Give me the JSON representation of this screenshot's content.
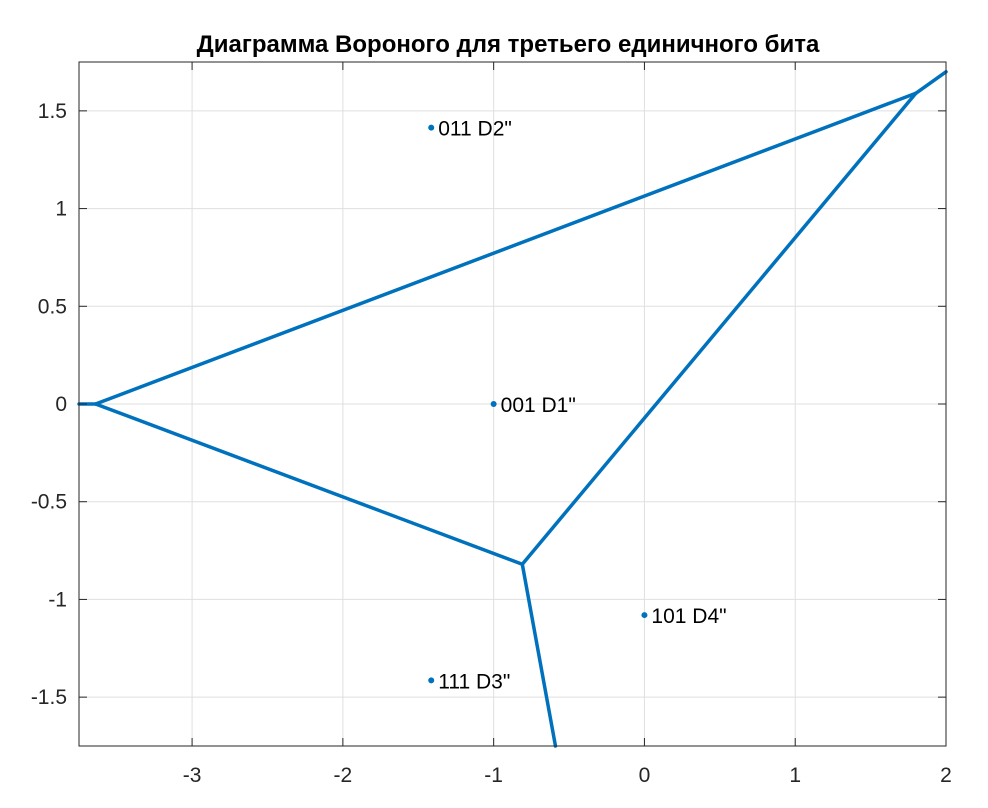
{
  "chart_data": {
    "type": "voronoi",
    "title": "Диаграмма Вороного для третьего единичного бита",
    "xlabel": "",
    "ylabel": "",
    "xlim": [
      -3.75,
      2
    ],
    "ylim": [
      -1.75,
      1.75
    ],
    "xticks": [
      -3,
      -2,
      -1,
      0,
      1,
      2
    ],
    "yticks": [
      -1.5,
      -1,
      -0.5,
      0,
      0.5,
      1,
      1.5
    ],
    "xtick_labels": [
      "-3",
      "-2",
      "-1",
      "0",
      "1",
      "2"
    ],
    "ytick_labels": [
      "-1.5",
      "-1",
      "-0.5",
      "0",
      "0.5",
      "1",
      "1.5"
    ],
    "grid": true,
    "color": "#0072BD",
    "points": [
      {
        "x": -1.414,
        "y": 1.414,
        "label": "011 D2\""
      },
      {
        "x": -1.0,
        "y": 0.0,
        "label": "001 D1\""
      },
      {
        "x": 0.0,
        "y": -1.08,
        "label": "101 D4\""
      },
      {
        "x": -1.414,
        "y": -1.414,
        "label": "111 D3\""
      }
    ],
    "edges": [
      [
        [
          -3.75,
          0.0
        ],
        [
          -3.64,
          0.0
        ]
      ],
      [
        [
          -3.64,
          0.0
        ],
        [
          1.8,
          1.59
        ]
      ],
      [
        [
          -3.64,
          0.0
        ],
        [
          -0.81,
          -0.82
        ]
      ],
      [
        [
          -0.81,
          -0.82
        ],
        [
          1.8,
          1.59
        ]
      ],
      [
        [
          1.8,
          1.59
        ],
        [
          2.0,
          1.7
        ]
      ],
      [
        [
          -0.81,
          -0.82
        ],
        [
          -0.59,
          -1.75
        ]
      ]
    ]
  }
}
